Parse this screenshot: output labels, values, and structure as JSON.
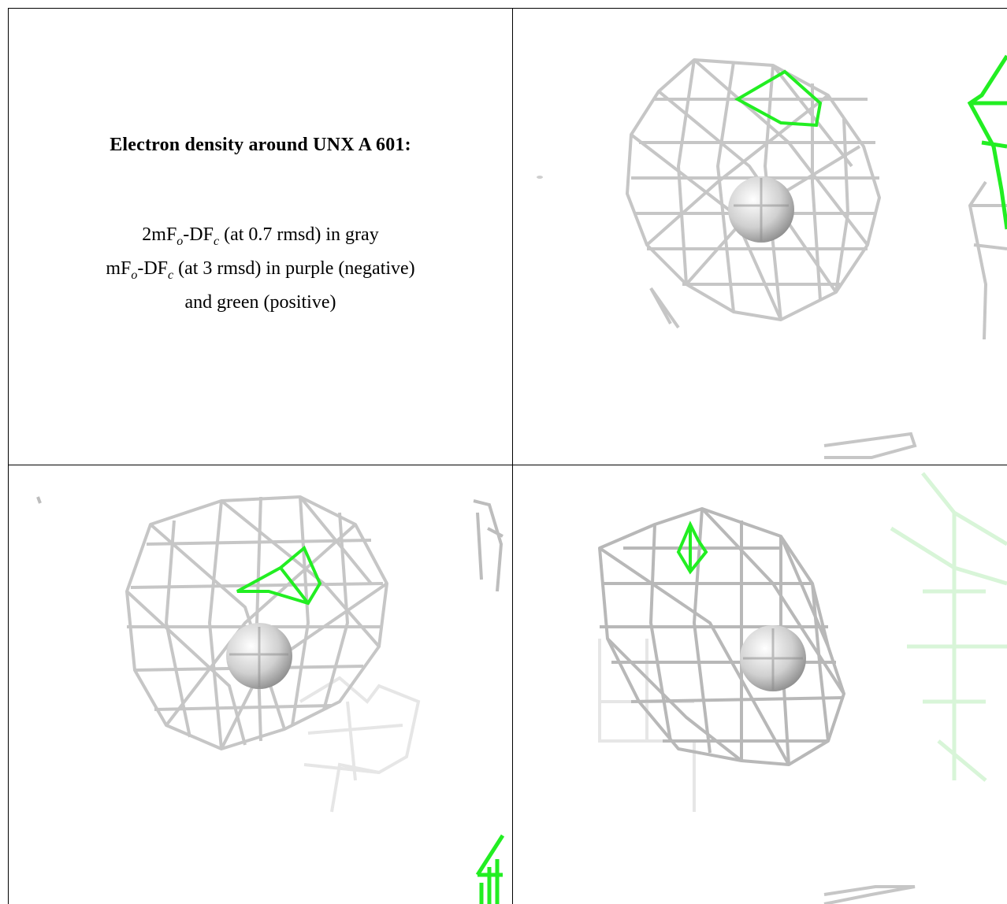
{
  "title": "Electron density around UNX A 601:",
  "legend": {
    "line1": {
      "a": "2mF",
      "a_sub": "o",
      "b": "-DF",
      "b_sub": "c",
      "rest": " (at 0.7 rmsd) in gray"
    },
    "line2": {
      "a": "mF",
      "a_sub": "o",
      "b": "-DF",
      "b_sub": "c",
      "rest": " (at 3 rmsd) in purple (negative)"
    },
    "line3": "and green (positive)"
  },
  "colors": {
    "mesh_gray": "#c8c8c8",
    "mesh_dark": "#8a8a8a",
    "positive_green": "#22ee22",
    "negative_purple": "#800080",
    "atom_sphere": "#d8d8d8"
  }
}
